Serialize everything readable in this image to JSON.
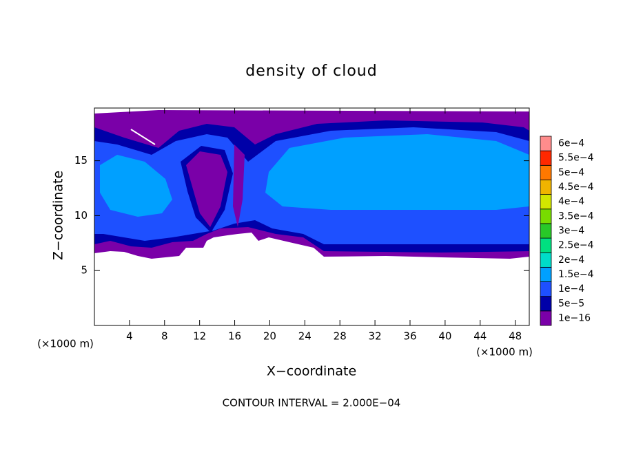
{
  "chart_data": {
    "type": "contour",
    "title": "density of cloud",
    "xlabel": "X−coordinate",
    "ylabel": "Z−coordinate",
    "xunit_label": "(×1000 m)",
    "yunit_label": "(×1000 m)",
    "annotation": "CONTOUR INTERVAL = 2.000E−04",
    "xlim": [
      0,
      49.6
    ],
    "ylim": [
      0,
      19.8
    ],
    "xticks": [
      4,
      8,
      12,
      16,
      20,
      24,
      28,
      32,
      36,
      40,
      44,
      48
    ],
    "yticks": [
      5,
      10,
      15
    ],
    "levels": [
      {
        "value": 1e-16,
        "label": "1e−16"
      },
      {
        "value": 5e-05,
        "label": "5e−5"
      },
      {
        "value": 0.0001,
        "label": "1e−4"
      },
      {
        "value": 0.00015,
        "label": "1.5e−4"
      },
      {
        "value": 0.0002,
        "label": "2e−4"
      },
      {
        "value": 0.00025,
        "label": "2.5e−4"
      },
      {
        "value": 0.0003,
        "label": "3e−4"
      },
      {
        "value": 0.00035,
        "label": "3.5e−4"
      },
      {
        "value": 0.0004,
        "label": "4e−4"
      },
      {
        "value": 0.00045,
        "label": "4.5e−4"
      },
      {
        "value": 0.0005,
        "label": "5e−4"
      },
      {
        "value": 0.00055,
        "label": "5.5e−4"
      },
      {
        "value": 0.0006,
        "label": "6e−4"
      }
    ],
    "level_colors": [
      "#7a00a8",
      "#0000a8",
      "#1e50ff",
      "#00a0ff",
      "#00dcc8",
      "#00e080",
      "#28c828",
      "#78dc00",
      "#d2e600",
      "#f0b400",
      "#ff7800",
      "#ff2800",
      "#ff8c8c"
    ]
  }
}
